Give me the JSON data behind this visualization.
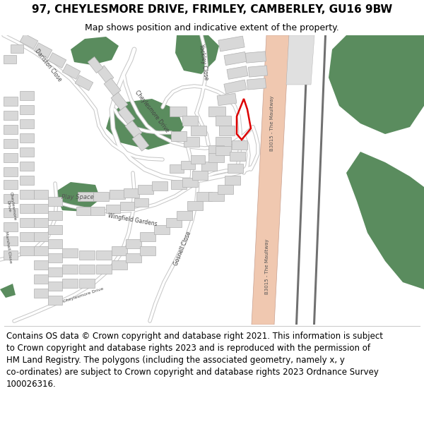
{
  "title": "97, CHEYLESMORE DRIVE, FRIMLEY, CAMBERLEY, GU16 9BW",
  "subtitle": "Map shows position and indicative extent of the property.",
  "footer": "Contains OS data © Crown copyright and database right 2021. This information is subject\nto Crown copyright and database rights 2023 and is reproduced with the permission of\nHM Land Registry. The polygons (including the associated geometry, namely x, y\nco-ordinates) are subject to Crown copyright and database rights 2023 Ordnance Survey\n100026316.",
  "bg_color": "#ffffff",
  "map_bg": "#f2f2f2",
  "road_color_main": "#f0c8b0",
  "road_border_color": "#c8a090",
  "hwy_white": "#ffffff",
  "hwy_border": "#888888",
  "green_color": "#5a8c5e",
  "building_fill": "#d8d8d8",
  "building_edge": "#b0b0b0",
  "street_white": "#ffffff",
  "street_gray": "#c0c0c0",
  "plot_outline": "#dd0000",
  "label_color": "#444444",
  "title_fontsize": 11,
  "subtitle_fontsize": 9,
  "footer_fontsize": 8.5
}
